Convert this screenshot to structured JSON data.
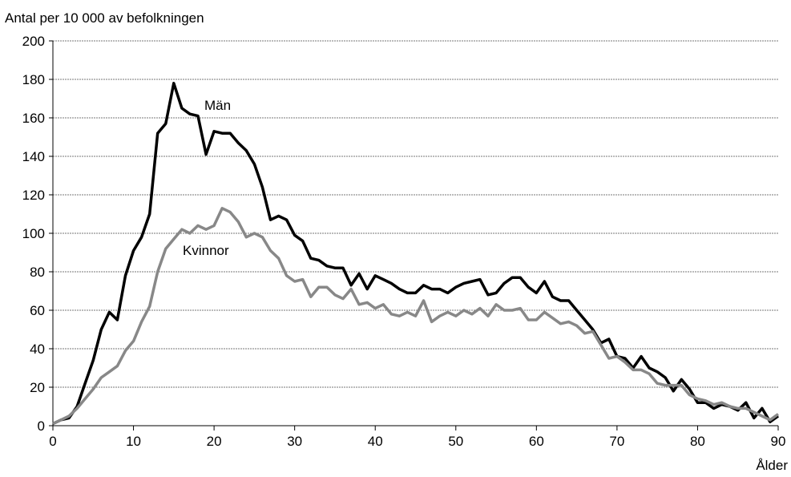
{
  "chart_data": {
    "type": "line",
    "y_label": "Antal per 10 000 av befolkningen",
    "x_label": "Ålder",
    "x": [
      0,
      1,
      2,
      3,
      4,
      5,
      6,
      7,
      8,
      9,
      10,
      11,
      12,
      13,
      14,
      15,
      16,
      17,
      18,
      19,
      20,
      21,
      22,
      23,
      24,
      25,
      26,
      27,
      28,
      29,
      30,
      31,
      32,
      33,
      34,
      35,
      36,
      37,
      38,
      39,
      40,
      41,
      42,
      43,
      44,
      45,
      46,
      47,
      48,
      49,
      50,
      51,
      52,
      53,
      54,
      55,
      56,
      57,
      58,
      59,
      60,
      61,
      62,
      63,
      64,
      65,
      66,
      67,
      68,
      69,
      70,
      71,
      72,
      73,
      74,
      75,
      76,
      77,
      78,
      79,
      80,
      81,
      82,
      83,
      84,
      85,
      86,
      87,
      88,
      89,
      90
    ],
    "series": [
      {
        "name": "Män",
        "color": "#000000",
        "values": [
          1,
          3,
          4,
          10,
          22,
          34,
          50,
          59,
          55,
          78,
          91,
          98,
          110,
          152,
          157,
          178,
          165,
          162,
          161,
          141,
          153,
          152,
          152,
          147,
          143,
          136,
          124,
          107,
          109,
          107,
          99,
          96,
          87,
          86,
          83,
          82,
          82,
          73,
          79,
          71,
          78,
          76,
          74,
          71,
          69,
          69,
          73,
          71,
          71,
          69,
          72,
          74,
          75,
          76,
          68,
          69,
          74,
          77,
          77,
          72,
          69,
          75,
          67,
          65,
          65,
          60,
          55,
          50,
          43,
          45,
          36,
          35,
          30,
          36,
          30,
          28,
          25,
          18,
          24,
          19,
          12,
          12,
          9,
          11,
          10,
          8,
          12,
          4,
          9,
          2,
          5
        ]
      },
      {
        "name": "Kvinnor",
        "color": "#888888",
        "values": [
          1,
          3,
          5,
          9,
          14,
          19,
          25,
          28,
          31,
          39,
          44,
          54,
          62,
          80,
          92,
          97,
          102,
          100,
          104,
          102,
          104,
          113,
          111,
          106,
          98,
          100,
          98,
          91,
          87,
          78,
          75,
          76,
          67,
          72,
          72,
          68,
          66,
          71,
          63,
          64,
          61,
          63,
          58,
          57,
          59,
          57,
          65,
          54,
          57,
          59,
          57,
          60,
          58,
          61,
          57,
          63,
          60,
          60,
          61,
          55,
          55,
          59,
          56,
          53,
          54,
          52,
          48,
          49,
          42,
          35,
          36,
          33,
          29,
          29,
          27,
          22,
          21,
          21,
          21,
          16,
          14,
          13,
          11,
          12,
          10,
          9,
          9,
          7,
          5,
          3,
          6
        ]
      }
    ],
    "xlim": [
      0,
      90
    ],
    "xticks": [
      0,
      10,
      20,
      30,
      40,
      50,
      60,
      70,
      80,
      90
    ],
    "ylim": [
      0,
      200
    ],
    "yticks": [
      0,
      20,
      40,
      60,
      80,
      100,
      120,
      140,
      160,
      180,
      200
    ],
    "grid": true
  }
}
